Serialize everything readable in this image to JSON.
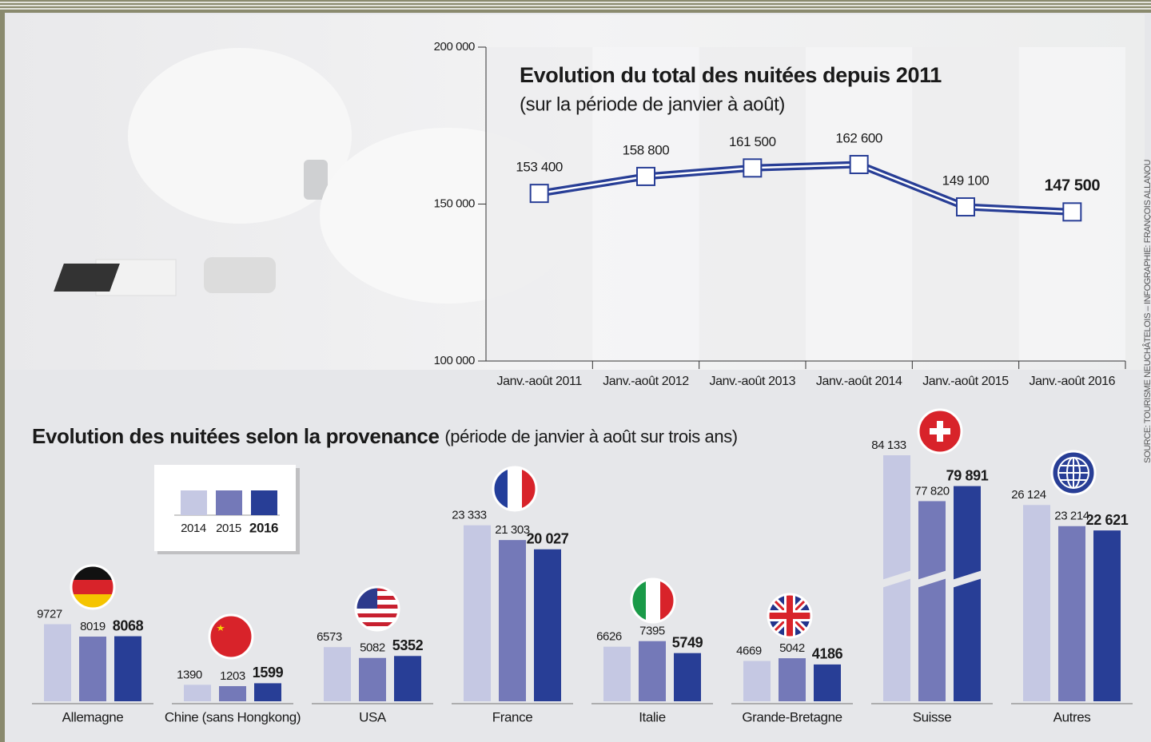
{
  "chart_data": [
    {
      "type": "line",
      "title": "Evolution du total des nuitées depuis 2011",
      "subtitle": "(sur la période de janvier à août)",
      "categories": [
        "Janv.-août 2011",
        "Janv.-août 2012",
        "Janv.-août 2013",
        "Janv.-août 2014",
        "Janv.-août 2015",
        "Janv.-août 2016"
      ],
      "values": [
        153400,
        158800,
        161500,
        162600,
        149100,
        147500
      ],
      "value_labels": [
        "153 400",
        "158 800",
        "161 500",
        "162 600",
        "149 100",
        "147 500"
      ],
      "color": "#283e96",
      "ylim": [
        100000,
        200000
      ],
      "yticks": [
        {
          "value": 100000,
          "label": "100 000"
        },
        {
          "value": 150000,
          "label": "150 000"
        },
        {
          "value": 200000,
          "label": "200 000"
        }
      ],
      "grid": false
    },
    {
      "type": "bar",
      "title": "Evolution des nuitées selon la provenance",
      "subtitle": "(période de janvier à août sur trois ans)",
      "categories": [
        "Allemagne",
        "Chine (sans Hongkong)",
        "USA",
        "France",
        "Italie",
        "Grande-Bretagne",
        "Suisse",
        "Autres"
      ],
      "series": [
        {
          "name": "2014",
          "color": "#c5c8e3",
          "values": [
            9727,
            1390,
            6573,
            23333,
            6626,
            4669,
            84133,
            26124
          ],
          "value_labels": [
            "9727",
            "1390",
            "6573",
            "23 333",
            "6626",
            "4669",
            "84 133",
            "26 124"
          ]
        },
        {
          "name": "2015",
          "color": "#7479b8",
          "values": [
            8019,
            1203,
            5082,
            21303,
            7395,
            5042,
            77820,
            23214
          ],
          "value_labels": [
            "8019",
            "1203",
            "5082",
            "21 303",
            "7395",
            "5042",
            "77 820",
            "23 214"
          ]
        },
        {
          "name": "2016",
          "color": "#283e96",
          "values": [
            8068,
            1599,
            5352,
            20027,
            5749,
            4186,
            79891,
            22621
          ],
          "value_labels": [
            "8068",
            "1599",
            "5352",
            "20 027",
            "5749",
            "4186",
            "79 891",
            "22 621"
          ]
        }
      ]
    }
  ],
  "source": "SOURCE: TOURISME NEUCHÂTELOIS – INFOGRAPHIE: FRANÇOIS ALLANOU"
}
